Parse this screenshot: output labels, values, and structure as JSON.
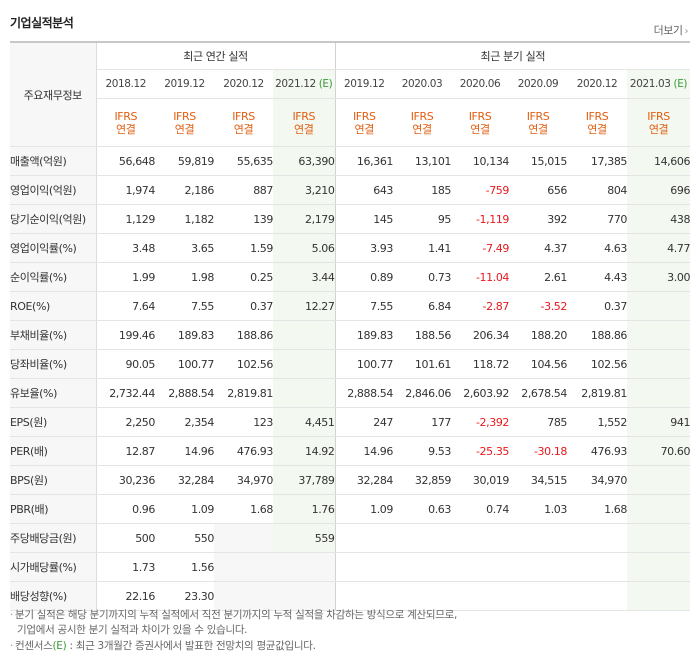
{
  "header": {
    "title": "기업실적분석",
    "more_label": "더보기",
    "more_icon": "chevron-right-icon"
  },
  "table": {
    "row_header_label": "주요재무정보",
    "annual_group_label": "최근 연간 실적",
    "quarter_group_label": "최근 분기 실적",
    "periods": [
      {
        "label": "2018.12",
        "est": ""
      },
      {
        "label": "2019.12",
        "est": ""
      },
      {
        "label": "2020.12",
        "est": ""
      },
      {
        "label": "2021.12",
        "est": "(E)"
      },
      {
        "label": "2019.12",
        "est": ""
      },
      {
        "label": "2020.03",
        "est": ""
      },
      {
        "label": "2020.06",
        "est": ""
      },
      {
        "label": "2020.09",
        "est": ""
      },
      {
        "label": "2020.12",
        "est": ""
      },
      {
        "label": "2021.03",
        "est": "(E)"
      }
    ],
    "ifrs_line1": "IFRS",
    "ifrs_line2": "연결",
    "rows": [
      {
        "label": "매출액(억원)",
        "values": [
          "56,648",
          "59,819",
          "55,635",
          "63,390",
          "16,361",
          "13,101",
          "10,134",
          "15,015",
          "17,385",
          "14,606"
        ]
      },
      {
        "label": "영업이익(억원)",
        "values": [
          "1,974",
          "2,186",
          "887",
          "3,210",
          "643",
          "185",
          "-759",
          "656",
          "804",
          "696"
        ]
      },
      {
        "label": "당기순이익(억원)",
        "values": [
          "1,129",
          "1,182",
          "139",
          "2,179",
          "145",
          "95",
          "-1,119",
          "392",
          "770",
          "438"
        ]
      },
      {
        "label": "영업이익률(%)",
        "values": [
          "3.48",
          "3.65",
          "1.59",
          "5.06",
          "3.93",
          "1.41",
          "-7.49",
          "4.37",
          "4.63",
          "4.77"
        ]
      },
      {
        "label": "순이익률(%)",
        "values": [
          "1.99",
          "1.98",
          "0.25",
          "3.44",
          "0.89",
          "0.73",
          "-11.04",
          "2.61",
          "4.43",
          "3.00"
        ]
      },
      {
        "label": "ROE(%)",
        "values": [
          "7.64",
          "7.55",
          "0.37",
          "12.27",
          "7.55",
          "6.84",
          "-2.87",
          "-3.52",
          "0.37",
          ""
        ]
      },
      {
        "label": "부채비율(%)",
        "values": [
          "199.46",
          "189.83",
          "188.86",
          "",
          "189.83",
          "188.56",
          "206.34",
          "188.20",
          "188.86",
          ""
        ]
      },
      {
        "label": "당좌비율(%)",
        "values": [
          "90.05",
          "100.77",
          "102.56",
          "",
          "100.77",
          "101.61",
          "118.72",
          "104.56",
          "102.56",
          ""
        ]
      },
      {
        "label": "유보율(%)",
        "values": [
          "2,732.44",
          "2,888.54",
          "2,819.81",
          "",
          "2,888.54",
          "2,846.06",
          "2,603.92",
          "2,678.54",
          "2,819.81",
          ""
        ]
      },
      {
        "label": "EPS(원)",
        "values": [
          "2,250",
          "2,354",
          "123",
          "4,451",
          "247",
          "177",
          "-2,392",
          "785",
          "1,552",
          "941"
        ]
      },
      {
        "label": "PER(배)",
        "values": [
          "12.87",
          "14.96",
          "476.93",
          "14.92",
          "14.96",
          "9.53",
          "-25.35",
          "-30.18",
          "476.93",
          "70.60"
        ]
      },
      {
        "label": "BPS(원)",
        "values": [
          "30,236",
          "32,284",
          "34,970",
          "37,789",
          "32,284",
          "32,859",
          "30,019",
          "34,515",
          "34,970",
          ""
        ]
      },
      {
        "label": "PBR(배)",
        "values": [
          "0.96",
          "1.09",
          "1.68",
          "1.76",
          "1.09",
          "0.63",
          "0.74",
          "1.03",
          "1.68",
          ""
        ]
      },
      {
        "label": "주당배당금(원)",
        "values": [
          "500",
          "550",
          "",
          "559",
          "",
          "",
          "",
          "",
          "",
          ""
        ]
      },
      {
        "label": "시가배당률(%)",
        "values": [
          "1.73",
          "1.56",
          "",
          "",
          "",
          "",
          "",
          "",
          "",
          ""
        ]
      },
      {
        "label": "배당성향(%)",
        "values": [
          "22.16",
          "23.30",
          "",
          "",
          "",
          "",
          "",
          "",
          "",
          ""
        ]
      }
    ]
  },
  "notes": {
    "note1_line1": "분기 실적은 해당 분기까지의 누적 실적에서 직전 분기까지의 누적 실적을 차감하는 방식으로 계산되므로,",
    "note1_line2": "기업에서 공시한 분기 실적과 차이가 있을 수 있습니다.",
    "note2_prefix": "컨센서스",
    "note2_mark": "(E)",
    "note2_suffix": ": 최근 3개월간 증권사에서 발표한 전망치의 평균값입니다."
  },
  "colors": {
    "negative": "#e8191d",
    "ifrs": "#e25e10",
    "estimate": "#3c9a3a",
    "estimate_bg": "#f3f8f1"
  }
}
